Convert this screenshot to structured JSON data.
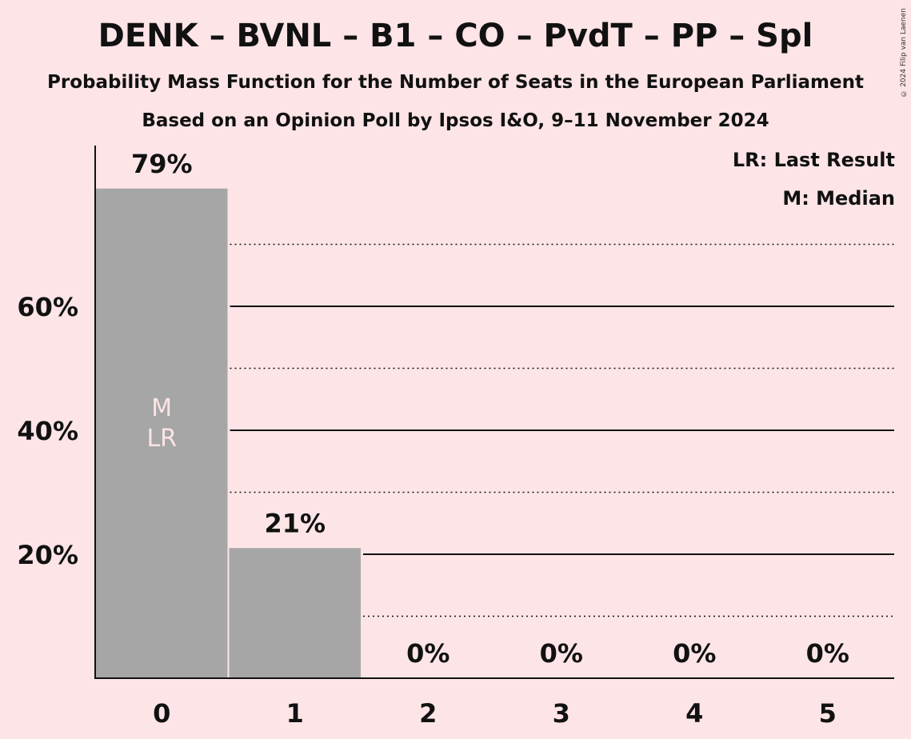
{
  "title": "DENK – BVNL – B1 – CO – PvdT – PP – Spl",
  "subtitle": "Probability Mass Function for the Number of Seats in the European Parliament",
  "subtitle2": "Based on an Opinion Poll by Ipsos I&O, 9–11 November 2024",
  "copyright": "© 2024 Filip van Laenen",
  "legend": {
    "last_result": "LR: Last Result",
    "median": "M: Median"
  },
  "colors": {
    "background": "#fde4e6",
    "bar": "#a6a6a6",
    "bar_marker_text": "#fde4e6"
  },
  "chart_data": {
    "type": "bar",
    "categories": [
      "0",
      "1",
      "2",
      "3",
      "4",
      "5"
    ],
    "values": [
      79,
      21,
      0,
      0,
      0,
      0
    ],
    "value_labels": [
      "79%",
      "21%",
      "0%",
      "0%",
      "0%",
      "0%"
    ],
    "ylim": [
      0,
      85
    ],
    "y_major_ticks": [
      20,
      40,
      60
    ],
    "y_tick_labels": [
      "20%",
      "40%",
      "60%"
    ],
    "y_minor_gridlines": [
      10,
      30,
      50,
      70
    ],
    "grid": true,
    "median_category": "0",
    "last_result_category": "0",
    "markers": {
      "median": "M",
      "last_result": "LR"
    },
    "legend_position": "top-right"
  }
}
